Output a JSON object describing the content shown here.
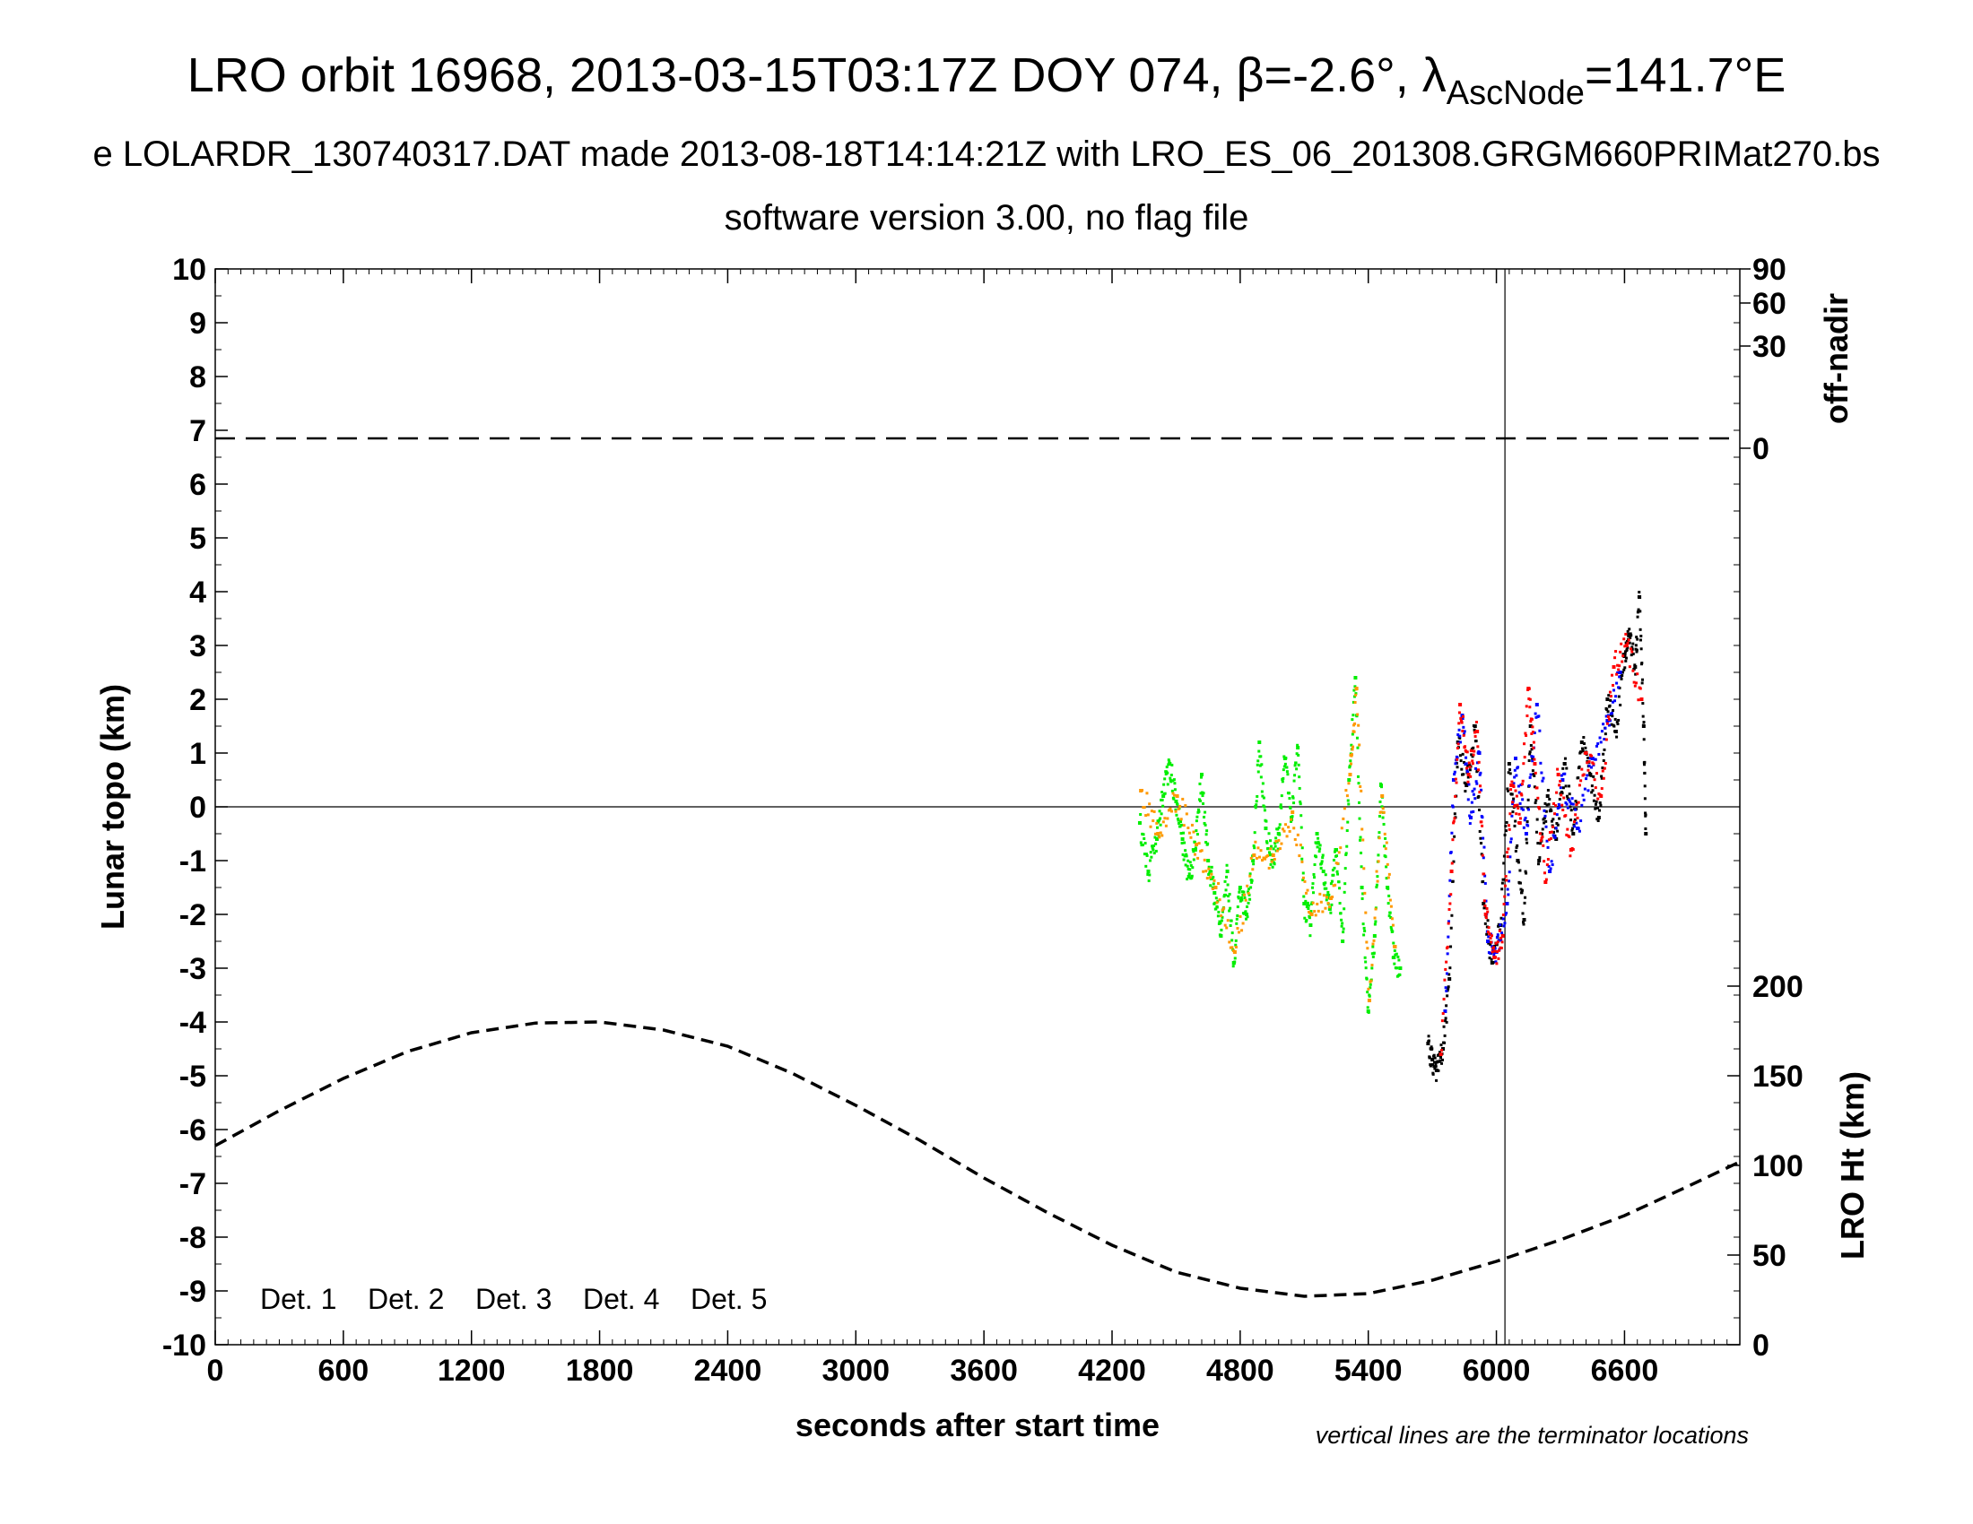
{
  "chart_data": {
    "type": "scatter",
    "title": "LRO orbit 16968, 2013-03-15T03:17Z DOY 074, β=-2.6°, λ",
    "title_sub": "AscNode",
    "title_end": "=141.7°E",
    "subtitle1": "e LOLARDR_130740317.DAT made 2013-08-18T14:14:21Z with LRO_ES_06_201308.GRGM660PRIMat270.bs",
    "subtitle2": "software version 3.00, no flag file",
    "xlabel": "seconds after start time",
    "ylabel_left": "Lunar topo (km)",
    "ylabel_right_top": "off-nadir",
    "ylabel_right_bottom": "LRO Ht (km)",
    "note": "vertical lines are the terminator locations",
    "xlim": [
      0,
      7140
    ],
    "ylim": [
      -10,
      10
    ],
    "x_ticks": [
      0,
      600,
      1200,
      1800,
      2400,
      3000,
      3600,
      4200,
      4800,
      5400,
      6000,
      6600
    ],
    "y_ticks": [
      -10,
      -9,
      -8,
      -7,
      -6,
      -5,
      -4,
      -3,
      -2,
      -1,
      0,
      1,
      2,
      3,
      4,
      5,
      6,
      7,
      8,
      9,
      10
    ],
    "offnadir_ticks": [
      "90",
      "60",
      "30",
      "0"
    ],
    "ht_ticks": [
      "200",
      "150",
      "100",
      "50",
      "0"
    ],
    "terminator_x": [
      6040
    ],
    "legend": [
      {
        "label": "Det. 1",
        "color": "#000000"
      },
      {
        "label": "Det. 2",
        "color": "#0000ff"
      },
      {
        "label": "Det. 3",
        "color": "#00ee00"
      },
      {
        "label": "Det. 4",
        "color": "#ff9900"
      },
      {
        "label": "Det. 5",
        "color": "#ff0000"
      }
    ],
    "offnadir_line_y": 6.85,
    "altitude_curve": {
      "x": [
        0,
        300,
        600,
        900,
        1200,
        1500,
        1800,
        2100,
        2400,
        2700,
        3000,
        3300,
        3600,
        3900,
        4200,
        4500,
        4800,
        5100,
        5400,
        5700,
        6000,
        6300,
        6600,
        6900,
        7140
      ],
      "y": [
        -6.3,
        -5.65,
        -5.05,
        -4.55,
        -4.2,
        -4.02,
        -4.0,
        -4.15,
        -4.45,
        -4.95,
        -5.55,
        -6.2,
        -6.9,
        -7.55,
        -8.15,
        -8.65,
        -8.95,
        -9.1,
        -9.05,
        -8.8,
        -8.45,
        -8.05,
        -7.6,
        -7.05,
        -6.6
      ]
    },
    "series": [
      {
        "name": "Det. 3",
        "color": "#00ee00",
        "x": [
          4330,
          4370,
          4410,
          4440,
          4470,
          4500,
          4530,
          4560,
          4590,
          4620,
          4650,
          4680,
          4710,
          4740,
          4770,
          4800,
          4830,
          4860,
          4890,
          4920,
          4950,
          4980,
          5010,
          5040,
          5070,
          5100,
          5130,
          5160,
          5190,
          5220,
          5250,
          5280,
          5310,
          5340,
          5370,
          5400,
          5430,
          5460,
          5490,
          5520,
          5550
        ],
        "y": [
          -0.3,
          -1.2,
          -0.6,
          0.2,
          0.8,
          0.1,
          -0.6,
          -1.3,
          -0.8,
          0.6,
          -1.0,
          -1.6,
          -2.4,
          -1.2,
          -2.9,
          -1.5,
          -2.0,
          -1.0,
          1.2,
          -0.4,
          -1.0,
          -0.5,
          0.9,
          -0.2,
          1.1,
          -1.8,
          -2.2,
          -0.5,
          -1.2,
          -1.9,
          -0.8,
          -2.5,
          0.5,
          2.4,
          -1.5,
          -3.8,
          -2.4,
          0.4,
          -1.5,
          -2.8,
          -3.0
        ]
      },
      {
        "name": "Det. 4",
        "color": "#ff9900",
        "x": [
          4335,
          4415,
          4505,
          4595,
          4685,
          4775,
          4865,
          4955,
          5045,
          5135,
          5225,
          5315,
          5345,
          5405,
          5465,
          5525
        ],
        "y": [
          0.3,
          -0.5,
          0.2,
          -0.7,
          -1.5,
          -2.7,
          -0.9,
          -0.9,
          -0.1,
          -2.0,
          -1.7,
          0.6,
          2.2,
          -3.6,
          0.2,
          -2.6
        ]
      },
      {
        "name": "Det. 1",
        "color": "#000000",
        "x": [
          5680,
          5700,
          5720,
          5750,
          5780,
          5820,
          5860,
          5900,
          5940,
          5980,
          6020,
          6060,
          6100,
          6130,
          6160,
          6200,
          6240,
          6280,
          6320,
          6360,
          6400,
          6440,
          6480,
          6520,
          6560,
          6600,
          6620,
          6650,
          6670,
          6690,
          6700
        ],
        "y": [
          -4.4,
          -4.7,
          -4.9,
          -4.5,
          -3.2,
          1.2,
          0.4,
          1.5,
          -1.8,
          -2.9,
          -2.2,
          0.8,
          -1.0,
          -2.1,
          1.5,
          -1.0,
          0.2,
          -0.6,
          0.8,
          -0.5,
          1.2,
          0.6,
          -0.2,
          2.0,
          1.4,
          2.8,
          3.2,
          2.6,
          3.9,
          1.5,
          -0.5
        ]
      },
      {
        "name": "Det. 2",
        "color": "#0000ff",
        "x": [
          5760,
          5800,
          5840,
          5880,
          5920,
          5960,
          6000,
          6050,
          6090,
          6140,
          6190,
          6250,
          6310,
          6380,
          6450,
          6520,
          6580
        ],
        "y": [
          -3.8,
          0.5,
          1.7,
          -0.2,
          1.0,
          -2.5,
          -2.7,
          -1.8,
          0.9,
          -0.5,
          1.9,
          -1.2,
          0.5,
          -0.4,
          0.9,
          1.6,
          2.5
        ]
      },
      {
        "name": "Det. 5",
        "color": "#ff0000",
        "x": [
          5740,
          5790,
          5830,
          5870,
          5910,
          5950,
          5990,
          6030,
          6070,
          6110,
          6150,
          6180,
          6230,
          6290,
          6350,
          6420,
          6490,
          6550,
          6610,
          6680
        ],
        "y": [
          -4.6,
          -1.2,
          1.9,
          0.6,
          1.4,
          -2.0,
          -2.8,
          -2.4,
          0.4,
          -0.3,
          2.2,
          0.8,
          -1.4,
          0.6,
          -0.8,
          1.0,
          0.2,
          2.6,
          3.0,
          2.0
        ]
      }
    ]
  }
}
